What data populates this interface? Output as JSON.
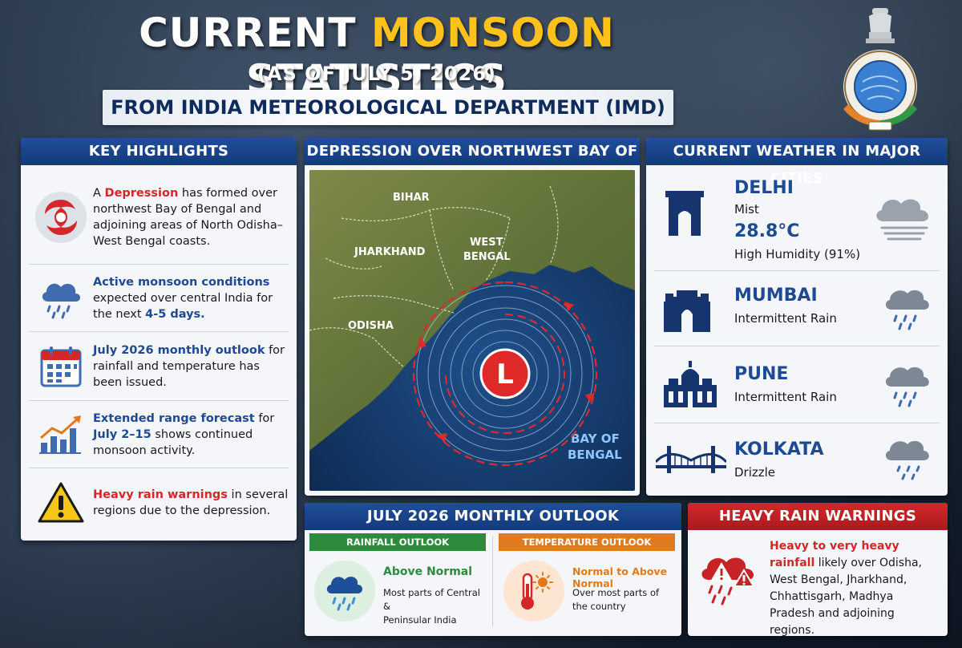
{
  "header": {
    "title_pre": "CURRENT ",
    "title_accent": "MONSOON",
    "title_post": " STATISTICS",
    "subtitle": "(AS OF JULY 5, 2026)",
    "source": "FROM INDIA METEOROLOGICAL DEPARTMENT (IMD)"
  },
  "key_highlights": {
    "heading": "KEY HIGHLIGHTS",
    "items": [
      {
        "icon": "cyclone-icon",
        "p1": "A ",
        "h1": "Depression",
        "p2": " has formed over northwest Bay of Bengal and adjoining areas of North Odisha–West Bengal coasts."
      },
      {
        "icon": "rain-cloud-icon",
        "h1": "Active monsoon conditions",
        "p1": " expected over central India for the next ",
        "h2": "4-5 days."
      },
      {
        "icon": "calendar-icon",
        "h1": "July 2026 monthly outlook",
        "p1": " for rainfall and temperature has been issued."
      },
      {
        "icon": "chart-up-icon",
        "h1": "Extended range forecast",
        "p1": " for ",
        "h2": "July 2–15",
        "p2": " shows continued monsoon activity."
      },
      {
        "icon": "warning-icon",
        "h1": "Heavy rain warnings",
        "p1": " in several regions due to the depression."
      }
    ]
  },
  "map": {
    "heading": "DEPRESSION OVER NORTHWEST BAY OF BENGAL",
    "labels": {
      "bihar": "BIHAR",
      "jharkhand": "JHARKHAND",
      "west_bengal_1": "WEST",
      "west_bengal_2": "BENGAL",
      "odisha": "ODISHA",
      "bay_1": "BAY OF",
      "bay_2": "BENGAL",
      "low": "L"
    }
  },
  "cities": {
    "heading": "CURRENT WEATHER IN MAJOR CITIES",
    "items": [
      {
        "name": "DELHI",
        "condition": "Mist",
        "temp": "28.8°C",
        "extra": "High Humidity (91%)",
        "icon": "india-gate-icon",
        "weather": "mist-icon"
      },
      {
        "name": "MUMBAI",
        "condition": "Intermittent Rain",
        "icon": "gateway-of-india-icon",
        "weather": "rain-icon"
      },
      {
        "name": "PUNE",
        "condition": "Intermittent Rain",
        "icon": "palace-icon",
        "weather": "rain-icon"
      },
      {
        "name": "KOLKATA",
        "condition": "Drizzle",
        "icon": "howrah-bridge-icon",
        "weather": "drizzle-icon"
      }
    ]
  },
  "outlook": {
    "heading": "JULY 2026 MONTHLY OUTLOOK",
    "rainfall": {
      "heading": "RAINFALL OUTLOOK",
      "title": "Above Normal",
      "desc1": "Most parts of Central &",
      "desc2": "Peninsular India"
    },
    "temperature": {
      "heading": "TEMPERATURE OUTLOOK",
      "title": "Normal to Above Normal",
      "desc1": "Over most parts of",
      "desc2": "the country"
    }
  },
  "warnings": {
    "heading": "HEAVY RAIN WARNINGS",
    "lead": "Heavy to very heavy rainfall",
    "body": " likely over Odisha, West Bengal, Jharkhand, Chhattisgarh, Madhya Pradesh and adjoining regions."
  },
  "colors": {
    "accent_yellow": "#ffc21a",
    "navy": "#133a7c",
    "red": "#d3272a",
    "green": "#2e8b3e",
    "orange": "#e07a1f"
  }
}
